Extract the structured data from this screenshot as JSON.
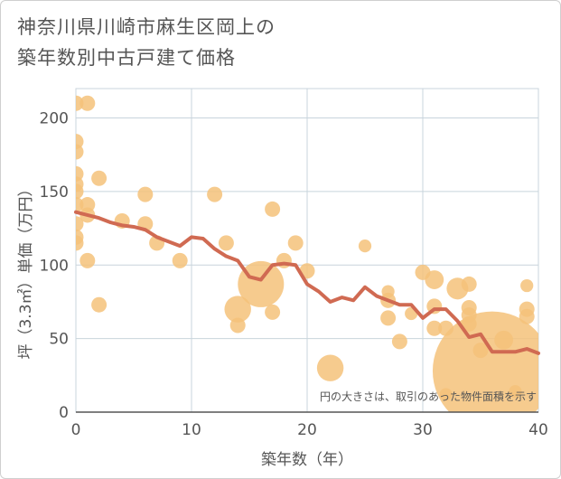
{
  "chart_data": {
    "type": "scatter",
    "title_lines": [
      "神奈川県川崎市麻生区岡上の",
      "築年数別中古戸建て価格"
    ],
    "xlabel": "築年数（年）",
    "ylabel": "坪（3.3㎡）単価（万円）",
    "xlim": [
      0,
      40
    ],
    "ylim": [
      0,
      220
    ],
    "x_ticks": [
      0,
      10,
      20,
      30,
      40
    ],
    "y_ticks": [
      0,
      50,
      100,
      150,
      200
    ],
    "grid": true,
    "note": "円の大きさは、取引のあった物件面積を示す",
    "colors": {
      "bubble": "#f5c27a",
      "line": "#d06a52",
      "grid": "#c8d4dc"
    },
    "bubbles": [
      {
        "x": 0,
        "y": 210,
        "size": 1
      },
      {
        "x": 1,
        "y": 210,
        "size": 1
      },
      {
        "x": 0,
        "y": 184,
        "size": 1
      },
      {
        "x": 0,
        "y": 177,
        "size": 1
      },
      {
        "x": 0,
        "y": 162,
        "size": 1
      },
      {
        "x": 0,
        "y": 155,
        "size": 1
      },
      {
        "x": 0,
        "y": 150,
        "size": 1
      },
      {
        "x": 0,
        "y": 141,
        "size": 1
      },
      {
        "x": 0,
        "y": 128,
        "size": 1
      },
      {
        "x": 0,
        "y": 119,
        "size": 1
      },
      {
        "x": 0,
        "y": 115,
        "size": 1
      },
      {
        "x": 1,
        "y": 141,
        "size": 1
      },
      {
        "x": 1,
        "y": 134,
        "size": 1
      },
      {
        "x": 1,
        "y": 103,
        "size": 1
      },
      {
        "x": 2,
        "y": 159,
        "size": 1
      },
      {
        "x": 2,
        "y": 73,
        "size": 1
      },
      {
        "x": 4,
        "y": 130,
        "size": 1
      },
      {
        "x": 6,
        "y": 148,
        "size": 1
      },
      {
        "x": 6,
        "y": 128,
        "size": 1
      },
      {
        "x": 7,
        "y": 115,
        "size": 1
      },
      {
        "x": 9,
        "y": 103,
        "size": 1
      },
      {
        "x": 12,
        "y": 148,
        "size": 1
      },
      {
        "x": 13,
        "y": 115,
        "size": 1
      },
      {
        "x": 14,
        "y": 70,
        "size": 3
      },
      {
        "x": 14,
        "y": 59,
        "size": 1
      },
      {
        "x": 16,
        "y": 87,
        "size": 9
      },
      {
        "x": 17,
        "y": 138,
        "size": 1
      },
      {
        "x": 17,
        "y": 68,
        "size": 1
      },
      {
        "x": 18,
        "y": 103,
        "size": 1
      },
      {
        "x": 19,
        "y": 115,
        "size": 1
      },
      {
        "x": 20,
        "y": 96,
        "size": 1
      },
      {
        "x": 22,
        "y": 30,
        "size": 3
      },
      {
        "x": 25,
        "y": 113,
        "size": 0.7
      },
      {
        "x": 27,
        "y": 82,
        "size": 0.7
      },
      {
        "x": 27,
        "y": 76,
        "size": 1
      },
      {
        "x": 27,
        "y": 64,
        "size": 1
      },
      {
        "x": 28,
        "y": 48,
        "size": 1
      },
      {
        "x": 29,
        "y": 67,
        "size": 0.7
      },
      {
        "x": 30,
        "y": 95,
        "size": 1
      },
      {
        "x": 31,
        "y": 90,
        "size": 1.5
      },
      {
        "x": 31,
        "y": 72,
        "size": 1
      },
      {
        "x": 31,
        "y": 57,
        "size": 1
      },
      {
        "x": 32,
        "y": 57,
        "size": 1
      },
      {
        "x": 32,
        "y": 12,
        "size": 0.7
      },
      {
        "x": 33,
        "y": 84,
        "size": 2
      },
      {
        "x": 34,
        "y": 87,
        "size": 1
      },
      {
        "x": 34,
        "y": 71,
        "size": 1
      },
      {
        "x": 34,
        "y": 66,
        "size": 1
      },
      {
        "x": 34,
        "y": 60,
        "size": 1
      },
      {
        "x": 35,
        "y": 42,
        "size": 1
      },
      {
        "x": 36,
        "y": 28,
        "size": 60
      },
      {
        "x": 37,
        "y": 49,
        "size": 1.5
      },
      {
        "x": 38,
        "y": 14,
        "size": 0.7
      },
      {
        "x": 39,
        "y": 86,
        "size": 0.7
      },
      {
        "x": 39,
        "y": 70,
        "size": 1
      },
      {
        "x": 39,
        "y": 65,
        "size": 1
      }
    ],
    "trend": {
      "x": [
        0,
        1,
        2,
        3,
        4,
        5,
        6,
        7,
        8,
        9,
        10,
        11,
        12,
        13,
        14,
        15,
        16,
        17,
        18,
        19,
        20,
        21,
        22,
        23,
        24,
        25,
        26,
        27,
        28,
        29,
        30,
        31,
        32,
        33,
        34,
        35,
        36,
        37,
        38,
        39,
        40
      ],
      "y": [
        136,
        134,
        132,
        129,
        127,
        126,
        124,
        119,
        116,
        113,
        119,
        118,
        111,
        106,
        103,
        92,
        90,
        100,
        101,
        100,
        87,
        82,
        75,
        78,
        76,
        85,
        79,
        76,
        73,
        73,
        64,
        70,
        70,
        62,
        51,
        53,
        41,
        41,
        41,
        43,
        40
      ]
    }
  }
}
